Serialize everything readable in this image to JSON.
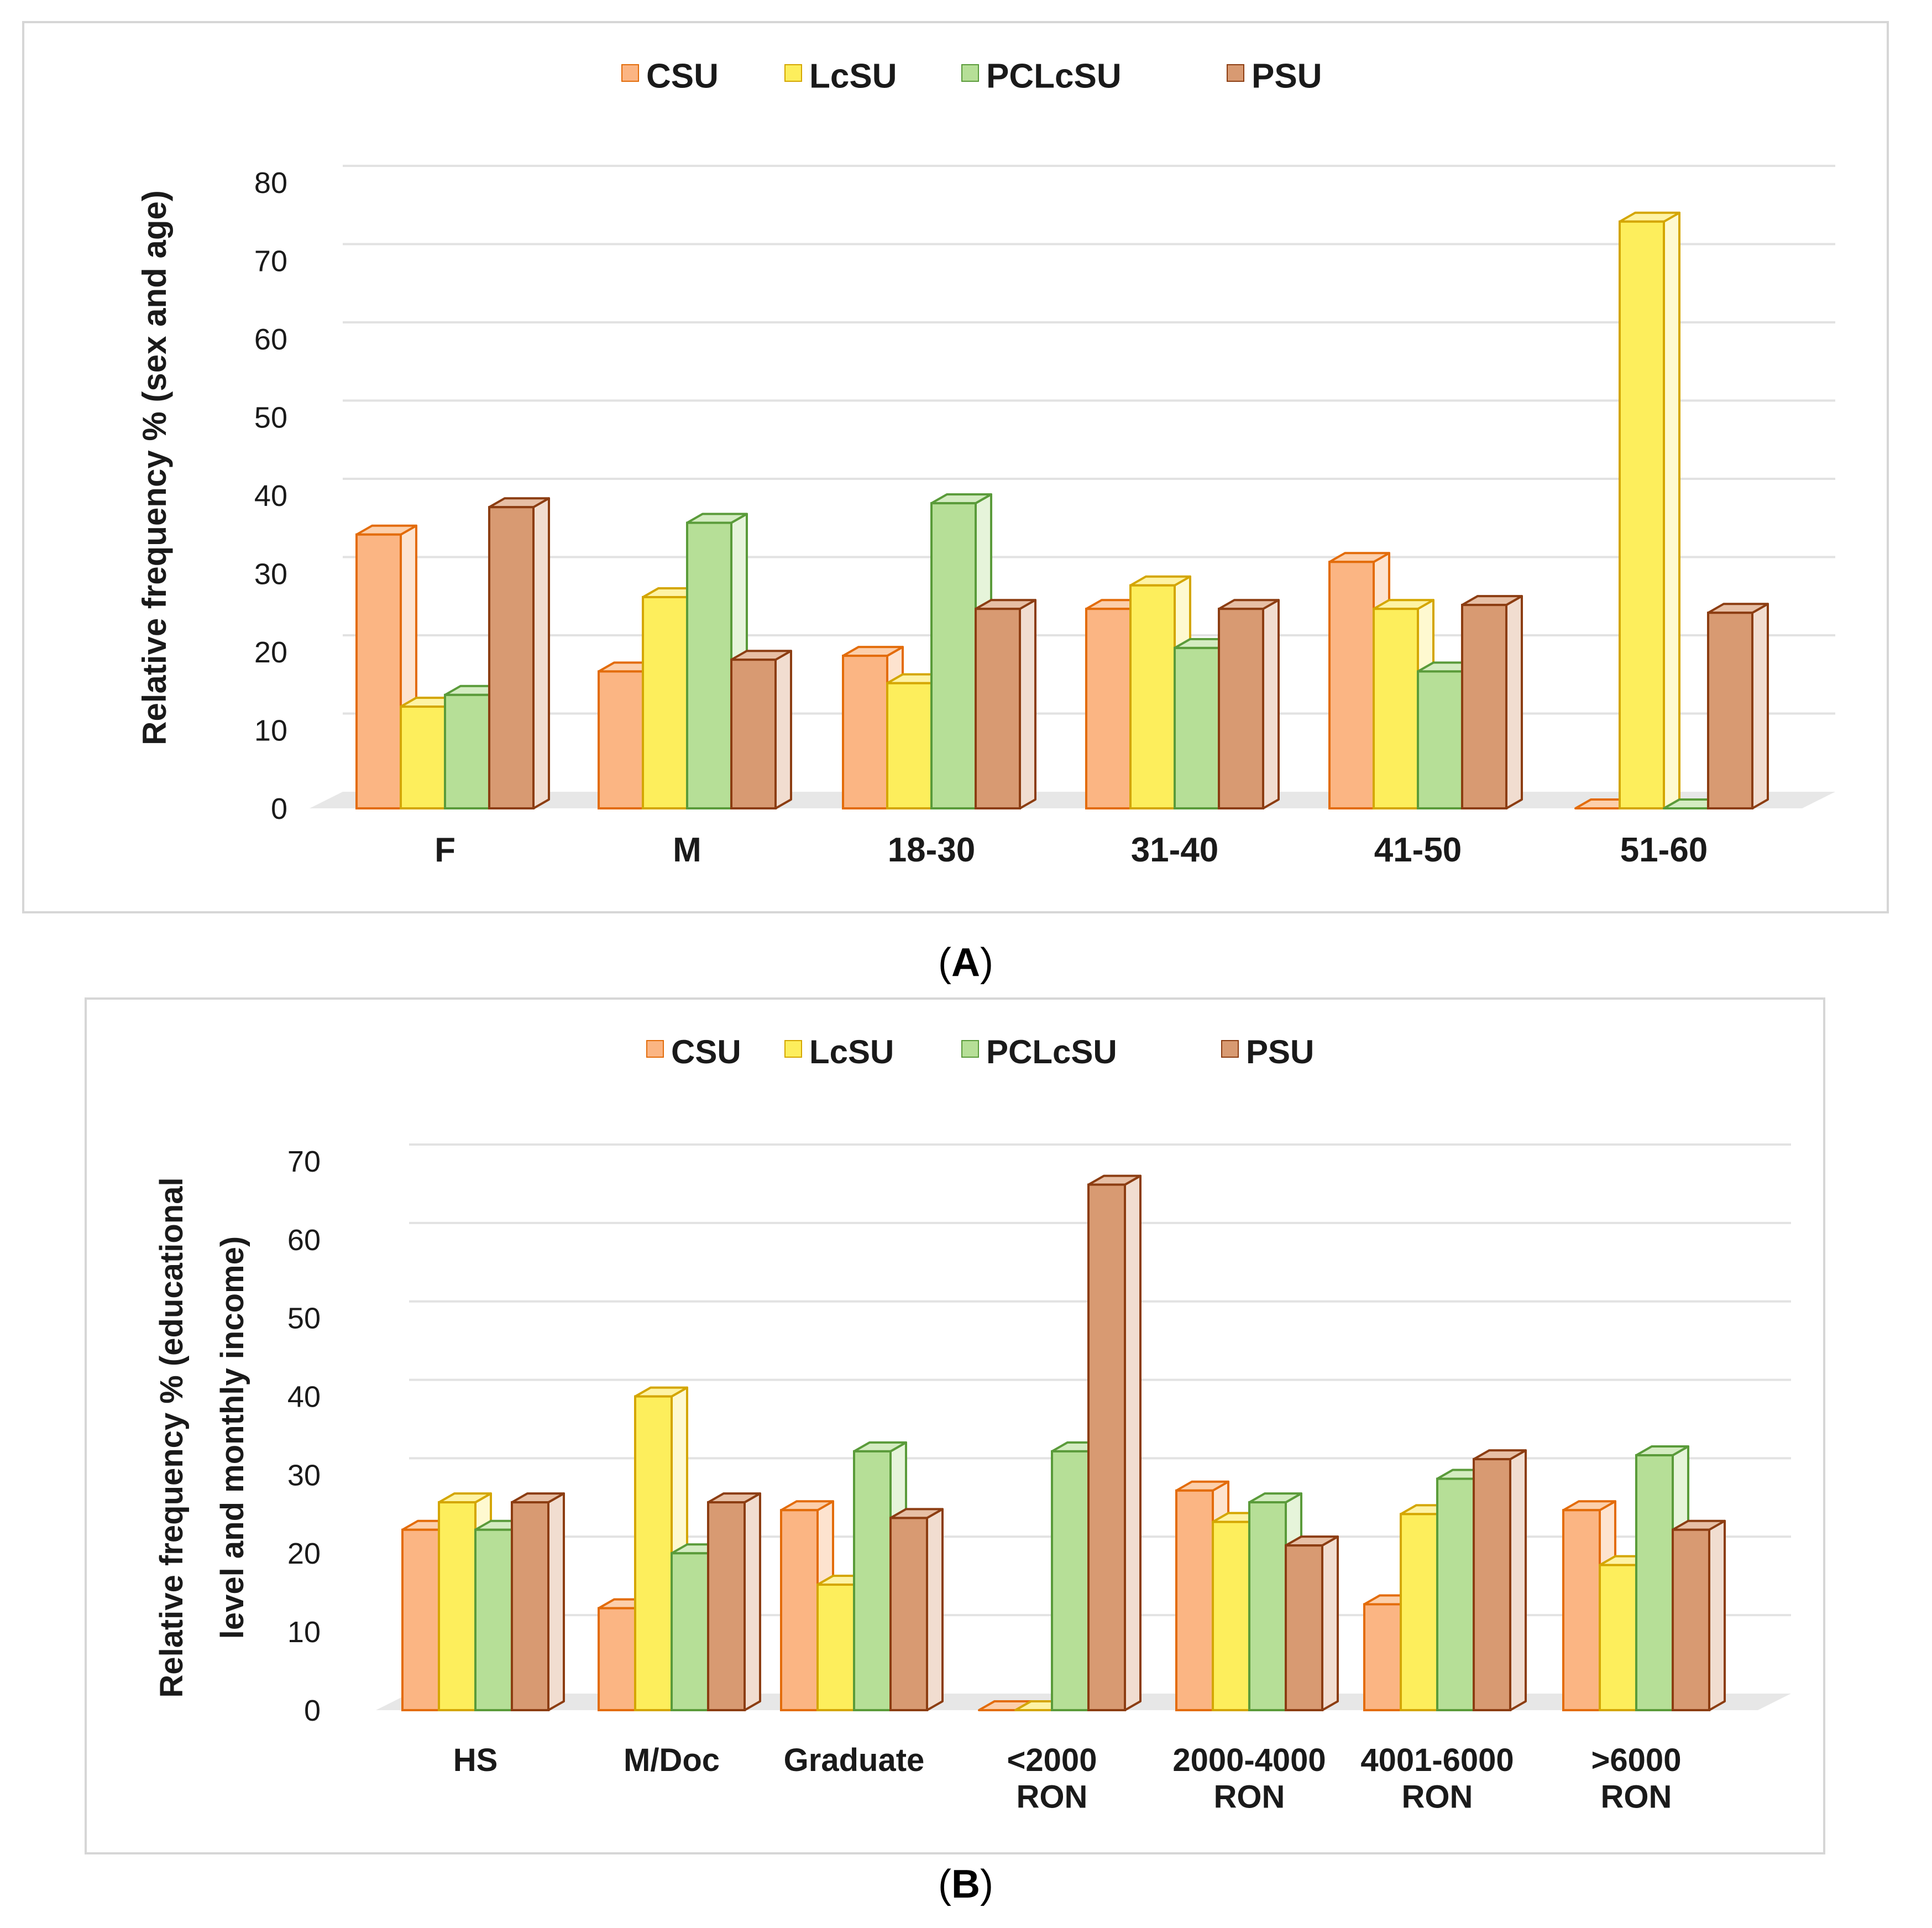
{
  "colors": {
    "CSU": {
      "front": "#FBB583",
      "side": "#FDE3CF",
      "top": "#FCCFAB",
      "edge": "#E36C0A"
    },
    "LcSU": {
      "front": "#FDEE5C",
      "side": "#FEF9D0",
      "top": "#FEF3A4",
      "edge": "#D4A600"
    },
    "PCLcSU": {
      "front": "#B6DF97",
      "side": "#E6F4DA",
      "top": "#D4ECC1",
      "edge": "#5A9B3A"
    },
    "PSU": {
      "front": "#D89A72",
      "side": "#F1DDD0",
      "top": "#E7BFA5",
      "edge": "#8C3D12"
    },
    "floor": "#E7E7E7",
    "grid": "#E2E2E2",
    "frame": "#D6D6D6"
  },
  "chart_data": [
    {
      "panel_label": "A",
      "type": "bar",
      "legend": [
        "CSU",
        "LcSU",
        "PCLcSU",
        "PSU"
      ],
      "ylabel": "Relative frequency % (sex and age)",
      "xlabel": "",
      "ylim": [
        0,
        80
      ],
      "yticks": [
        "0",
        "10",
        "20",
        "30",
        "40",
        "50",
        "60",
        "70",
        "80"
      ],
      "categories": [
        [
          "F"
        ],
        [
          "M"
        ],
        [
          "18-30"
        ],
        [
          "31-40"
        ],
        [
          "41-50"
        ],
        [
          "51-60"
        ]
      ],
      "series": [
        {
          "name": "CSU",
          "values": [
            35,
            17.5,
            19.5,
            25.5,
            31.5,
            0
          ]
        },
        {
          "name": "LcSU",
          "values": [
            13,
            27,
            16,
            28.5,
            25.5,
            75
          ]
        },
        {
          "name": "PCLcSU",
          "values": [
            14.5,
            36.5,
            39,
            20.5,
            17.5,
            0
          ]
        },
        {
          "name": "PSU",
          "values": [
            38.5,
            19,
            25.5,
            25.5,
            26,
            25
          ]
        }
      ]
    },
    {
      "panel_label": "B",
      "type": "bar",
      "legend": [
        "CSU",
        "LcSU",
        "PCLcSU",
        "PSU"
      ],
      "ylabel_lines": [
        "Relative frequency % (educational",
        "level and monthly income)"
      ],
      "xlabel": "",
      "ylim": [
        0,
        70
      ],
      "yticks": [
        "0",
        "10",
        "20",
        "30",
        "40",
        "50",
        "60",
        "70"
      ],
      "categories": [
        [
          "HS"
        ],
        [
          "M/Doc"
        ],
        [
          "Graduate"
        ],
        [
          "<2000",
          "RON"
        ],
        [
          "2000-4000",
          "RON"
        ],
        [
          "4001-6000",
          "RON"
        ],
        [
          ">6000",
          "RON"
        ]
      ],
      "series": [
        {
          "name": "CSU",
          "values": [
            23,
            13,
            25.5,
            0,
            28,
            13.5,
            25.5
          ]
        },
        {
          "name": "LcSU",
          "values": [
            26.5,
            40,
            16,
            0,
            24,
            25,
            18.5
          ]
        },
        {
          "name": "PCLcSU",
          "values": [
            23,
            20,
            33,
            33,
            26.5,
            29.5,
            32.5
          ]
        },
        {
          "name": "PSU",
          "values": [
            26.5,
            26.5,
            24.5,
            67,
            21,
            32,
            23
          ]
        }
      ]
    }
  ]
}
